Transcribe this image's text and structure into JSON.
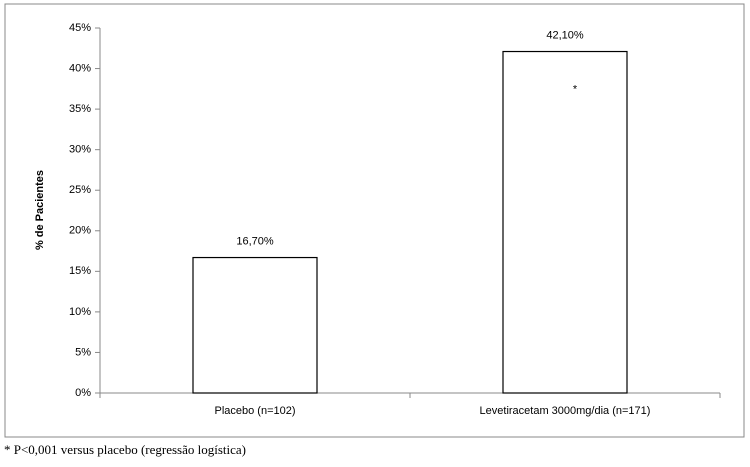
{
  "chart_data": {
    "type": "bar",
    "ylabel": "% de Pacientes",
    "categories": [
      "Placebo (n=102)",
      "Levetiracetam 3000mg/dia (n=171)"
    ],
    "values": [
      16.7,
      42.1
    ],
    "value_labels": [
      "16,70%",
      "42,10%"
    ],
    "color": "#ffffff",
    "ylim": [
      0,
      45
    ],
    "yticks": [
      {
        "value": 0,
        "label": "0%"
      },
      {
        "value": 5,
        "label": "5%"
      },
      {
        "value": 10,
        "label": "10%"
      },
      {
        "value": 15,
        "label": "15%"
      },
      {
        "value": 20,
        "label": "20%"
      },
      {
        "value": 25,
        "label": "25%"
      },
      {
        "value": 30,
        "label": "30%"
      },
      {
        "value": 35,
        "label": "35%"
      },
      {
        "value": 40,
        "label": "40%"
      },
      {
        "value": 45,
        "label": "45%"
      }
    ],
    "grid": false,
    "annotations": [
      "*"
    ],
    "footnote": "* P<0,001 versus placebo (regressão logística)"
  }
}
